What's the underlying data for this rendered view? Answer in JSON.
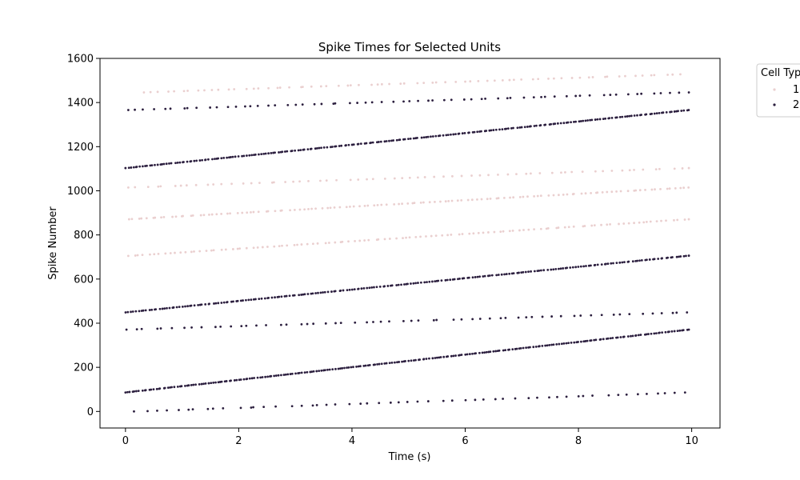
{
  "chart_data": {
    "type": "scatter",
    "title": "Spike Times for Selected Units",
    "xlabel": "Time (s)",
    "ylabel": "Spike Number",
    "xlim": [
      -0.45,
      10.5
    ],
    "ylim": [
      -75,
      1600
    ],
    "xticks": [
      0,
      2,
      4,
      6,
      8,
      10
    ],
    "yticks": [
      0,
      200,
      400,
      600,
      800,
      1000,
      1200,
      1400,
      1600
    ],
    "grid": false,
    "legend": {
      "title": "Cell Typ",
      "placement": "outside-top-right",
      "entries": [
        "1",
        "2"
      ]
    },
    "colors": {
      "1": "#eacfcf",
      "2": "#2b1e3e"
    },
    "series": [
      {
        "name": "1",
        "units": [
          {
            "t_start": 0.05,
            "t_end": 9.95,
            "n_start": 705,
            "n_end": 871,
            "count": 110
          },
          {
            "t_start": 0.05,
            "t_end": 9.95,
            "n_start": 871,
            "n_end": 1015,
            "count": 120
          },
          {
            "t_start": 0.05,
            "t_end": 9.95,
            "n_start": 1015,
            "n_end": 1103,
            "count": 65
          },
          {
            "t_start": 0.3,
            "t_end": 9.8,
            "n_start": 1446,
            "n_end": 1528,
            "count": 70
          }
        ]
      },
      {
        "name": "2",
        "units": [
          {
            "t_start": 0.15,
            "t_end": 9.95,
            "n_start": 0,
            "n_end": 86,
            "count": 55
          },
          {
            "t_start": 0.0,
            "t_end": 9.95,
            "n_start": 86,
            "n_end": 371,
            "count": 240
          },
          {
            "t_start": 0.0,
            "t_end": 9.95,
            "n_start": 371,
            "n_end": 449,
            "count": 60
          },
          {
            "t_start": 0.0,
            "t_end": 9.95,
            "n_start": 449,
            "n_end": 706,
            "count": 220
          },
          {
            "t_start": 0.0,
            "t_end": 9.95,
            "n_start": 1103,
            "n_end": 1366,
            "count": 230
          },
          {
            "t_start": 0.05,
            "t_end": 9.95,
            "n_start": 1366,
            "n_end": 1446,
            "count": 65
          }
        ]
      }
    ]
  }
}
